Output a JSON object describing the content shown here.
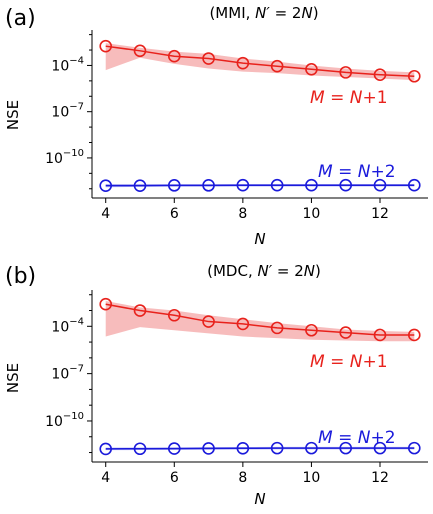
{
  "chart_data": [
    {
      "type": "line",
      "panel_label": "(a)",
      "title_pre": "(MMI, ",
      "title_var": "N′",
      "title_mid": " = 2",
      "title_var2": "N",
      "title_post": ")",
      "xlabel": "N",
      "ylabel": "NSE",
      "yscale": "log",
      "xlim": [
        3.6,
        13.4
      ],
      "ylim_log10": [
        -12.6,
        -1.7
      ],
      "xticks": [
        4,
        6,
        8,
        10,
        12
      ],
      "yticks_log10": [
        -4,
        -7,
        -10
      ],
      "grid": false,
      "x": [
        4,
        5,
        6,
        7,
        8,
        9,
        10,
        11,
        12,
        13
      ],
      "series": [
        {
          "color": "#e8221c",
          "band_color": "#f4a0a0",
          "values_log10": [
            -2.75,
            -3.05,
            -3.4,
            -3.55,
            -3.85,
            -4.05,
            -4.25,
            -4.45,
            -4.6,
            -4.7
          ],
          "band_low_log10": [
            -4.3,
            -3.5,
            -3.9,
            -4.2,
            -4.4,
            -4.5,
            -4.65,
            -4.75,
            -4.85,
            -4.95
          ],
          "band_high_log10": [
            -2.55,
            -2.85,
            -3.1,
            -3.25,
            -3.55,
            -3.75,
            -4.0,
            -4.2,
            -4.35,
            -4.45
          ],
          "label_var": "M",
          "label_mid": " = ",
          "label_var2": "N",
          "label_post": "+1"
        },
        {
          "color": "#1a1adb",
          "band_color": "#9a9af0",
          "values_log10": [
            -11.8,
            -11.8,
            -11.78,
            -11.78,
            -11.77,
            -11.77,
            -11.77,
            -11.77,
            -11.77,
            -11.77
          ],
          "band_low_log10": [
            -11.9,
            -11.88,
            -11.86,
            -11.86,
            -11.85,
            -11.85,
            -11.85,
            -11.85,
            -11.85,
            -11.85
          ],
          "band_high_log10": [
            -11.7,
            -11.7,
            -11.7,
            -11.7,
            -11.69,
            -11.69,
            -11.69,
            -11.69,
            -11.69,
            -11.69
          ],
          "label_var": "M",
          "label_mid": " = ",
          "label_var2": "N",
          "label_post": "+2"
        }
      ]
    },
    {
      "type": "line",
      "panel_label": "(b)",
      "title_pre": "(MDC, ",
      "title_var": "N′",
      "title_mid": " = 2",
      "title_var2": "N",
      "title_post": ")",
      "xlabel": "N",
      "ylabel": "NSE",
      "yscale": "log",
      "xlim": [
        3.6,
        13.4
      ],
      "ylim_log10": [
        -12.6,
        -1.7
      ],
      "xticks": [
        4,
        6,
        8,
        10,
        12
      ],
      "yticks_log10": [
        -4,
        -7,
        -10
      ],
      "grid": false,
      "x": [
        4,
        5,
        6,
        7,
        8,
        9,
        10,
        11,
        12,
        13
      ],
      "series": [
        {
          "color": "#e8221c",
          "band_color": "#f4a0a0",
          "values_log10": [
            -2.6,
            -3.0,
            -3.3,
            -3.7,
            -3.85,
            -4.1,
            -4.25,
            -4.4,
            -4.55,
            -4.55
          ],
          "band_low_log10": [
            -4.65,
            -4.05,
            -4.25,
            -4.45,
            -4.65,
            -4.75,
            -4.85,
            -4.9,
            -4.95,
            -4.95
          ],
          "band_high_log10": [
            -2.4,
            -2.8,
            -3.0,
            -3.3,
            -3.55,
            -3.8,
            -4.0,
            -4.2,
            -4.3,
            -4.35
          ],
          "label_var": "M",
          "label_mid": " = ",
          "label_var2": "N",
          "label_post": "+1"
        },
        {
          "color": "#1a1adb",
          "band_color": "#9a9af0",
          "values_log10": [
            -11.77,
            -11.76,
            -11.75,
            -11.74,
            -11.73,
            -11.72,
            -11.72,
            -11.72,
            -11.72,
            -11.72
          ],
          "band_low_log10": [
            -11.85,
            -11.84,
            -11.83,
            -11.82,
            -11.81,
            -11.8,
            -11.8,
            -11.8,
            -11.8,
            -11.8
          ],
          "band_high_log10": [
            -11.69,
            -11.68,
            -11.67,
            -11.66,
            -11.65,
            -11.64,
            -11.64,
            -11.64,
            -11.64,
            -11.64
          ],
          "label_var": "M",
          "label_mid": " = ",
          "label_var2": "N",
          "label_post": "+2"
        }
      ]
    }
  ]
}
